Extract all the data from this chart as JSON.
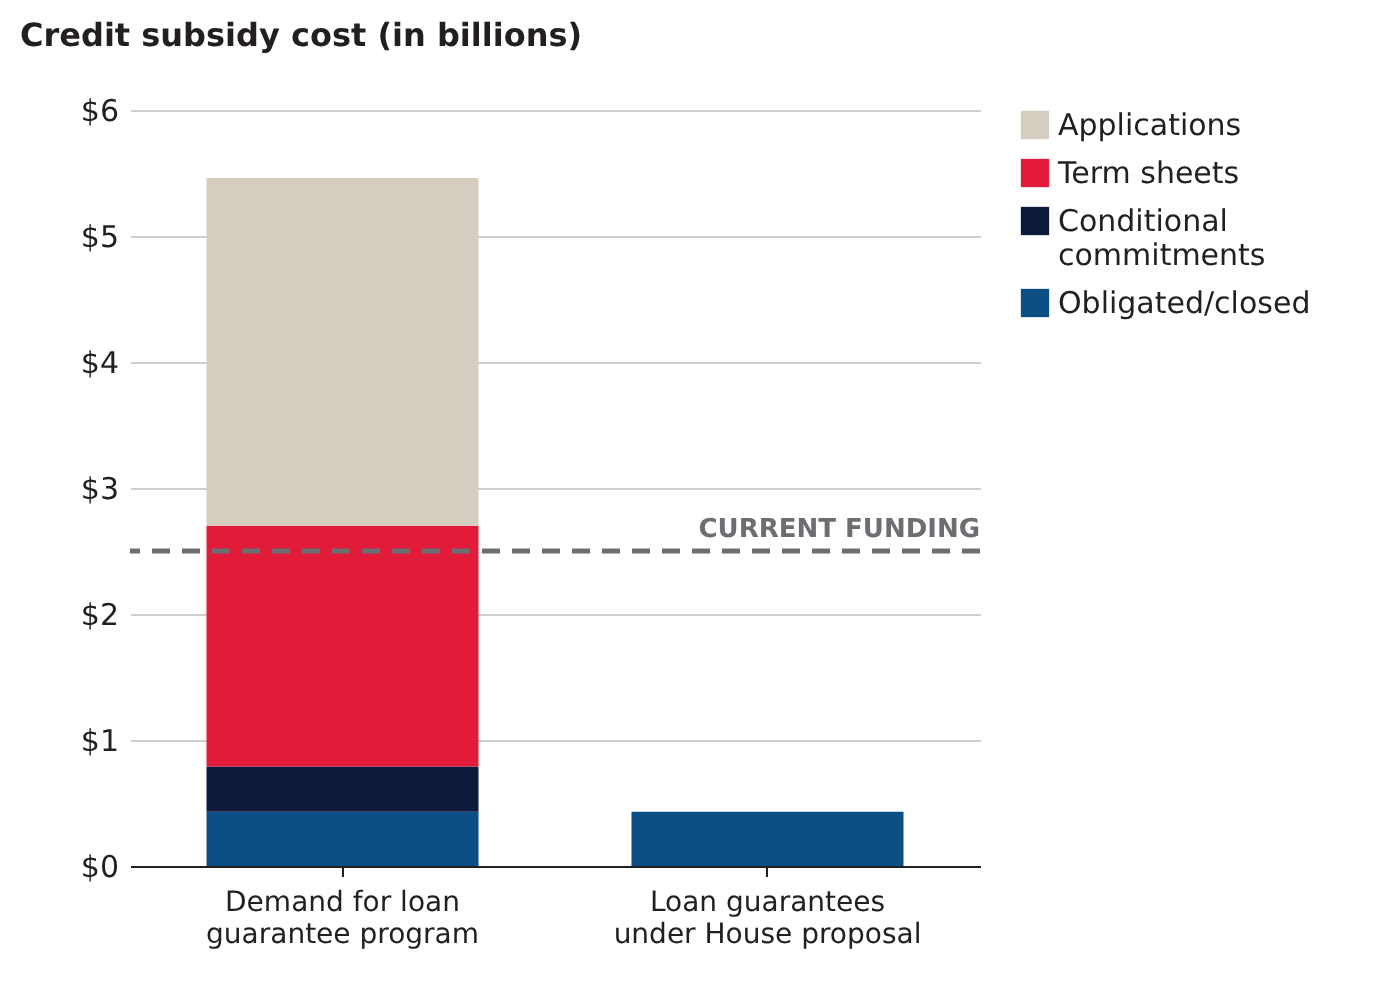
{
  "chart_data": {
    "type": "bar",
    "stacked": true,
    "title": "Credit subsidy cost (in billions)",
    "categories": [
      "Demand for loan guarantee program",
      "Loan guarantees under House proposal"
    ],
    "series": [
      {
        "name": "Obligated/closed",
        "color": "#0b4f85",
        "values": [
          0.43,
          0.43
        ]
      },
      {
        "name": "Conditional commitments",
        "color": "#0d1a3c",
        "values": [
          0.36,
          null
        ]
      },
      {
        "name": "Term sheets",
        "color": "#e31b3b",
        "values": [
          1.91,
          null
        ]
      },
      {
        "name": "Applications",
        "color": "#d5cdc0",
        "values": [
          2.76,
          null
        ]
      }
    ],
    "ylim": [
      0,
      6
    ],
    "yticks": [
      {
        "value": 0,
        "label": "$0"
      },
      {
        "value": 1,
        "label": "$1"
      },
      {
        "value": 2,
        "label": "$2"
      },
      {
        "value": 3,
        "label": "$3"
      },
      {
        "value": 4,
        "label": "$4"
      },
      {
        "value": 5,
        "label": "$5"
      },
      {
        "value": 6,
        "label": "$6"
      }
    ],
    "grid": "y",
    "legend": "right",
    "ref_lines": [
      {
        "axis": "y",
        "value": 2.5,
        "label": "CURRENT FUNDING",
        "color": "#6d6e71",
        "line_style": "dashed"
      }
    ]
  }
}
